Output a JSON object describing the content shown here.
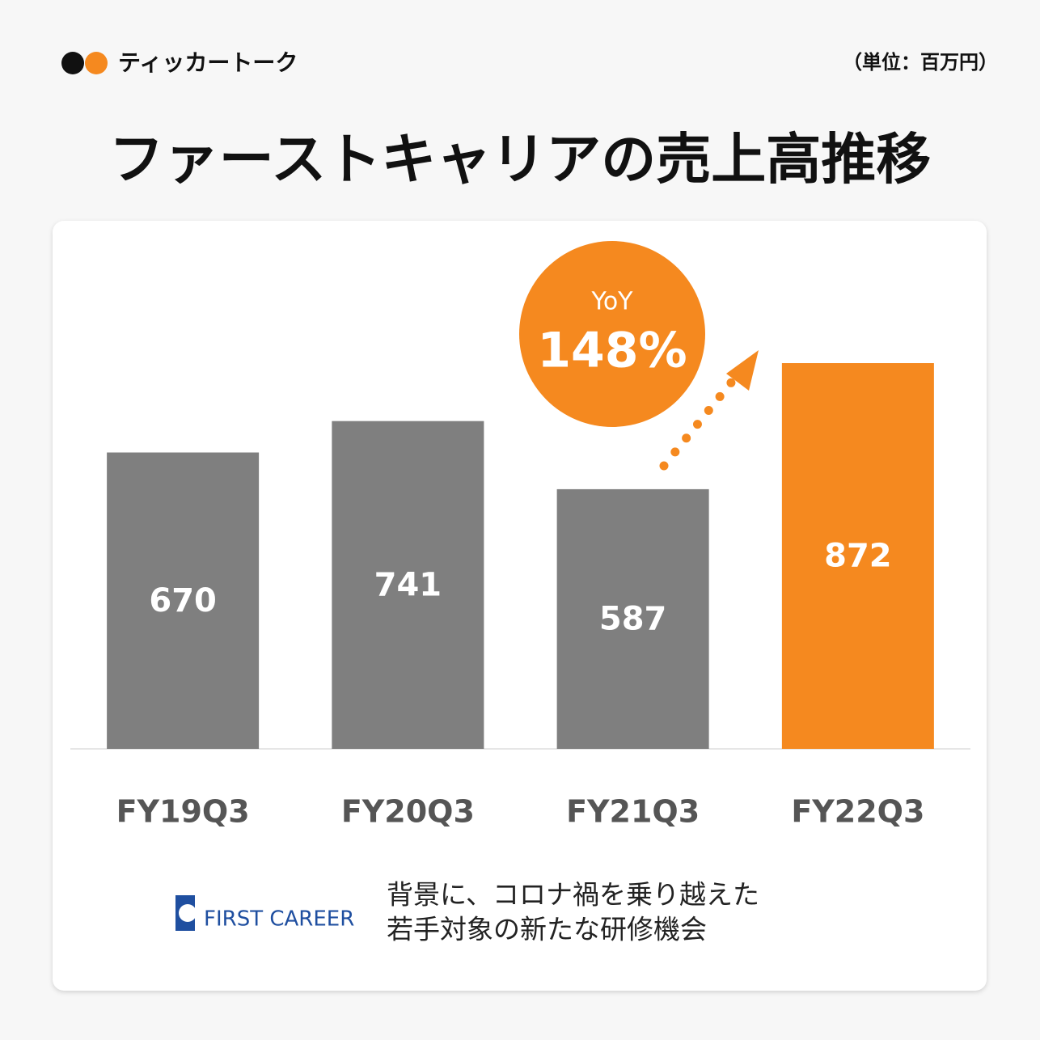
{
  "brand": "ティッカートーク",
  "chart_data": {
    "type": "bar",
    "title": "ファーストキャリアの売上高推移",
    "unit": "（単位：百万円）",
    "categories": [
      "FY19Q3",
      "FY20Q3",
      "FY21Q3",
      "FY22Q3"
    ],
    "values": [
      670,
      741,
      587,
      872
    ],
    "colors": [
      "#7f7f7f",
      "#7f7f7f",
      "#7f7f7f",
      "#f5891f"
    ],
    "ylim": [
      0,
      1000
    ],
    "annotation": {
      "label": "YoY",
      "text": "148%"
    }
  },
  "footer": {
    "logo": "FIRST CAREER",
    "lines": [
      "背景に、コロナ禍を乗り越えた",
      "若手対象の新たな研修機会"
    ]
  }
}
